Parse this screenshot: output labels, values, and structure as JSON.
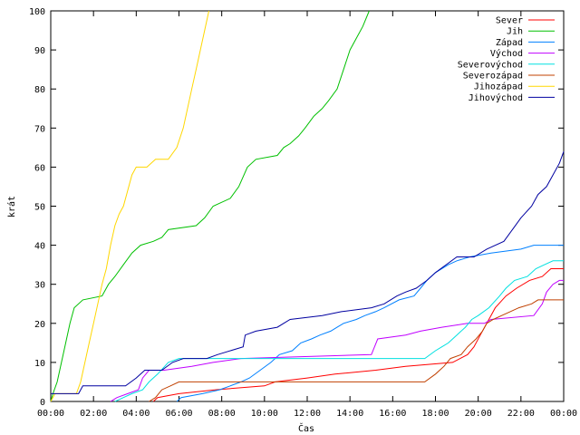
{
  "chart_data": {
    "type": "line",
    "title": "",
    "xlabel": "Čas",
    "ylabel": "krát",
    "xlim": [
      0,
      24
    ],
    "ylim": [
      0,
      100
    ],
    "x_ticks": [
      0,
      2,
      4,
      6,
      8,
      10,
      12,
      14,
      16,
      18,
      20,
      22,
      24
    ],
    "x_tick_labels": [
      "00:00",
      "02:00",
      "04:00",
      "06:00",
      "08:00",
      "10:00",
      "12:00",
      "14:00",
      "16:00",
      "18:00",
      "20:00",
      "22:00",
      "00:00"
    ],
    "y_ticks": [
      0,
      10,
      20,
      30,
      40,
      50,
      60,
      70,
      80,
      90,
      100
    ],
    "grid": false,
    "legend_position": "top-right",
    "series": [
      {
        "name": "Sever",
        "color": "#ff0000",
        "points": [
          [
            4.8,
            0
          ],
          [
            5.0,
            1
          ],
          [
            6.0,
            2
          ],
          [
            7.7,
            3
          ],
          [
            10.0,
            4
          ],
          [
            10.5,
            5
          ],
          [
            12.0,
            6
          ],
          [
            13.3,
            7
          ],
          [
            15.2,
            8
          ],
          [
            16.6,
            9
          ],
          [
            18.8,
            10
          ],
          [
            19.5,
            12
          ],
          [
            19.8,
            14
          ],
          [
            20.1,
            17
          ],
          [
            20.4,
            20
          ],
          [
            20.6,
            22
          ],
          [
            20.8,
            24
          ],
          [
            21.3,
            27
          ],
          [
            21.8,
            29
          ],
          [
            22.4,
            31
          ],
          [
            23.0,
            32
          ],
          [
            23.4,
            34
          ],
          [
            24.0,
            34
          ]
        ]
      },
      {
        "name": "Jih",
        "color": "#00c000",
        "points": [
          [
            0.0,
            0
          ],
          [
            0.1,
            2
          ],
          [
            0.3,
            5
          ],
          [
            0.5,
            10
          ],
          [
            0.7,
            15
          ],
          [
            0.9,
            20
          ],
          [
            1.1,
            24
          ],
          [
            1.5,
            26
          ],
          [
            2.4,
            27
          ],
          [
            2.7,
            30
          ],
          [
            3.0,
            32
          ],
          [
            3.4,
            35
          ],
          [
            3.8,
            38
          ],
          [
            4.2,
            40
          ],
          [
            4.8,
            41
          ],
          [
            5.2,
            42
          ],
          [
            5.5,
            44
          ],
          [
            6.8,
            45
          ],
          [
            7.2,
            47
          ],
          [
            7.6,
            50
          ],
          [
            8.4,
            52
          ],
          [
            8.8,
            55
          ],
          [
            9.2,
            60
          ],
          [
            9.6,
            62
          ],
          [
            10.6,
            63
          ],
          [
            10.9,
            65
          ],
          [
            11.2,
            66
          ],
          [
            11.6,
            68
          ],
          [
            11.9,
            70
          ],
          [
            12.3,
            73
          ],
          [
            12.7,
            75
          ],
          [
            13.0,
            77
          ],
          [
            13.4,
            80
          ],
          [
            13.7,
            85
          ],
          [
            14.0,
            90
          ],
          [
            14.3,
            93
          ],
          [
            14.6,
            96
          ],
          [
            14.9,
            100
          ]
        ]
      },
      {
        "name": "Západ",
        "color": "#0080ff",
        "points": [
          [
            5.9,
            0
          ],
          [
            6.1,
            1
          ],
          [
            7.1,
            2
          ],
          [
            7.9,
            3
          ],
          [
            8.4,
            4
          ],
          [
            8.9,
            5
          ],
          [
            9.3,
            6
          ],
          [
            9.8,
            8
          ],
          [
            10.3,
            10
          ],
          [
            10.7,
            12
          ],
          [
            11.3,
            13
          ],
          [
            11.7,
            15
          ],
          [
            12.2,
            16
          ],
          [
            12.6,
            17
          ],
          [
            13.1,
            18
          ],
          [
            13.4,
            19
          ],
          [
            13.7,
            20
          ],
          [
            14.3,
            21
          ],
          [
            14.7,
            22
          ],
          [
            15.2,
            23
          ],
          [
            15.6,
            24
          ],
          [
            16.3,
            26
          ],
          [
            17.0,
            27
          ],
          [
            17.3,
            29
          ],
          [
            17.6,
            31
          ],
          [
            18.0,
            33
          ],
          [
            18.6,
            35
          ],
          [
            19.0,
            36
          ],
          [
            19.6,
            37
          ],
          [
            20.6,
            38
          ],
          [
            22.0,
            39
          ],
          [
            22.6,
            40
          ],
          [
            24.0,
            40
          ]
        ]
      },
      {
        "name": "Východ",
        "color": "#c000ff",
        "points": [
          [
            2.8,
            0
          ],
          [
            3.1,
            1
          ],
          [
            3.6,
            2
          ],
          [
            4.1,
            3
          ],
          [
            4.3,
            6
          ],
          [
            4.6,
            8
          ],
          [
            5.3,
            8
          ],
          [
            6.6,
            9
          ],
          [
            7.6,
            10
          ],
          [
            8.9,
            11
          ],
          [
            15.0,
            12
          ],
          [
            15.3,
            16
          ],
          [
            16.6,
            17
          ],
          [
            17.3,
            18
          ],
          [
            18.3,
            19
          ],
          [
            19.5,
            20
          ],
          [
            20.3,
            20
          ],
          [
            20.6,
            21
          ],
          [
            22.6,
            22
          ],
          [
            23.0,
            25
          ],
          [
            23.2,
            28
          ],
          [
            23.5,
            30
          ],
          [
            23.8,
            31
          ],
          [
            24.0,
            31
          ]
        ]
      },
      {
        "name": "Severovýchod",
        "color": "#00e0e0",
        "points": [
          [
            3.0,
            0
          ],
          [
            3.4,
            1
          ],
          [
            3.8,
            2
          ],
          [
            4.3,
            3
          ],
          [
            4.6,
            5
          ],
          [
            5.0,
            7
          ],
          [
            5.5,
            10
          ],
          [
            6.0,
            11
          ],
          [
            15.0,
            11
          ],
          [
            17.5,
            11
          ],
          [
            18.0,
            13
          ],
          [
            18.3,
            14
          ],
          [
            18.6,
            15
          ],
          [
            19.0,
            17
          ],
          [
            19.4,
            19
          ],
          [
            19.7,
            21
          ],
          [
            20.0,
            22
          ],
          [
            20.5,
            24
          ],
          [
            21.0,
            27
          ],
          [
            21.3,
            29
          ],
          [
            21.7,
            31
          ],
          [
            22.3,
            32
          ],
          [
            22.7,
            34
          ],
          [
            23.1,
            35
          ],
          [
            23.5,
            36
          ],
          [
            24.0,
            36
          ]
        ]
      },
      {
        "name": "Severozápad",
        "color": "#c04000",
        "points": [
          [
            4.6,
            0
          ],
          [
            4.9,
            1
          ],
          [
            5.2,
            3
          ],
          [
            5.6,
            4
          ],
          [
            6.0,
            5
          ],
          [
            7.5,
            5
          ],
          [
            10.8,
            5
          ],
          [
            17.5,
            5
          ],
          [
            18.0,
            7
          ],
          [
            18.4,
            9
          ],
          [
            18.7,
            11
          ],
          [
            19.2,
            12
          ],
          [
            19.5,
            14
          ],
          [
            19.9,
            16
          ],
          [
            20.2,
            18
          ],
          [
            20.4,
            20
          ],
          [
            20.7,
            21
          ],
          [
            21.1,
            22
          ],
          [
            21.5,
            23
          ],
          [
            21.9,
            24
          ],
          [
            22.5,
            25
          ],
          [
            22.8,
            26
          ],
          [
            24.0,
            26
          ]
        ]
      },
      {
        "name": "Jihozápad",
        "color": "#ffd700",
        "points": [
          [
            0.0,
            0
          ],
          [
            0.2,
            2
          ],
          [
            1.2,
            2
          ],
          [
            1.4,
            5
          ],
          [
            1.6,
            10
          ],
          [
            1.8,
            15
          ],
          [
            2.0,
            20
          ],
          [
            2.2,
            25
          ],
          [
            2.4,
            30
          ],
          [
            2.6,
            34
          ],
          [
            2.8,
            40
          ],
          [
            3.0,
            45
          ],
          [
            3.2,
            48
          ],
          [
            3.4,
            50
          ],
          [
            3.6,
            54
          ],
          [
            3.8,
            58
          ],
          [
            4.0,
            60
          ],
          [
            4.5,
            60
          ],
          [
            4.9,
            62
          ],
          [
            5.5,
            62
          ],
          [
            5.9,
            65
          ],
          [
            6.2,
            70
          ],
          [
            6.4,
            75
          ],
          [
            6.6,
            80
          ],
          [
            6.8,
            85
          ],
          [
            7.0,
            90
          ],
          [
            7.2,
            95
          ],
          [
            7.4,
            100
          ]
        ]
      },
      {
        "name": "Jihovýchod",
        "color": "#0000a0",
        "points": [
          [
            0.0,
            2
          ],
          [
            1.3,
            2
          ],
          [
            1.5,
            4
          ],
          [
            3.5,
            4
          ],
          [
            4.0,
            6
          ],
          [
            4.4,
            8
          ],
          [
            5.2,
            8
          ],
          [
            5.7,
            10
          ],
          [
            6.2,
            11
          ],
          [
            7.3,
            11
          ],
          [
            7.8,
            12
          ],
          [
            9.0,
            14
          ],
          [
            9.1,
            17
          ],
          [
            9.6,
            18
          ],
          [
            10.6,
            19
          ],
          [
            11.2,
            21
          ],
          [
            12.7,
            22
          ],
          [
            13.6,
            23
          ],
          [
            15.0,
            24
          ],
          [
            15.6,
            25
          ],
          [
            16.2,
            27
          ],
          [
            16.6,
            28
          ],
          [
            17.1,
            29
          ],
          [
            17.6,
            31
          ],
          [
            18.0,
            33
          ],
          [
            18.5,
            35
          ],
          [
            19.0,
            37
          ],
          [
            19.8,
            37
          ],
          [
            20.4,
            39
          ],
          [
            21.2,
            41
          ],
          [
            21.6,
            44
          ],
          [
            22.0,
            47
          ],
          [
            22.5,
            50
          ],
          [
            22.8,
            53
          ],
          [
            23.2,
            55
          ],
          [
            23.5,
            58
          ],
          [
            23.8,
            61
          ],
          [
            24.0,
            64
          ]
        ]
      }
    ]
  }
}
